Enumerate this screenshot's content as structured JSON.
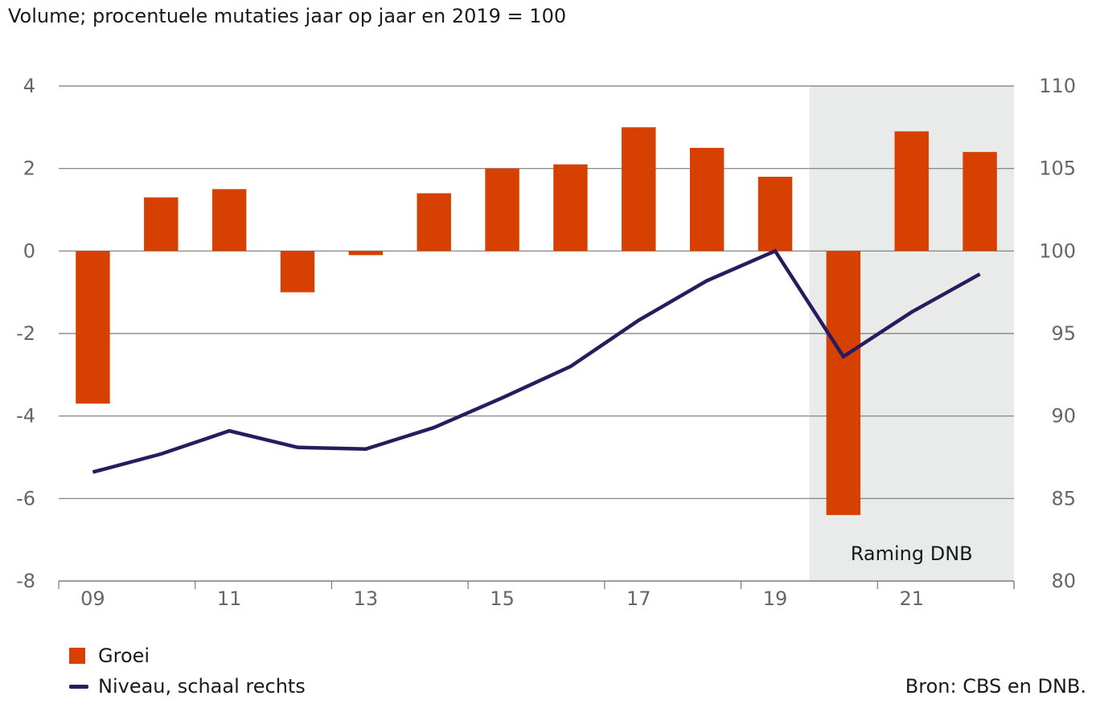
{
  "subtitle": "Volume; procentuele mutaties jaar op jaar en 2019 = 100",
  "source": "Bron: CBS en DNB.",
  "colors": {
    "bars": "#d64000",
    "line": "#2a1a5e",
    "shade": "#e9eaea",
    "grid": "#7a7a7a",
    "tick_text": "#666666"
  },
  "chart_data": {
    "type": "bar",
    "title": "",
    "years": [
      2009,
      2010,
      2011,
      2012,
      2013,
      2014,
      2015,
      2016,
      2017,
      2018,
      2019,
      2020,
      2021,
      2022
    ],
    "x_tick_labels": [
      "09",
      "11",
      "13",
      "15",
      "17",
      "19",
      "21"
    ],
    "x_tick_years": [
      2009,
      2011,
      2013,
      2015,
      2017,
      2019,
      2021
    ],
    "series": [
      {
        "name": "Groei",
        "type": "bar",
        "axis": "left",
        "values": [
          -3.7,
          1.3,
          1.5,
          -1.0,
          -0.1,
          1.4,
          2.0,
          2.1,
          3.0,
          2.5,
          1.8,
          -6.4,
          2.9,
          2.4
        ]
      },
      {
        "name": "Niveau, schaal rechts",
        "type": "line",
        "axis": "right",
        "values": [
          86.6,
          87.7,
          89.1,
          88.1,
          88.0,
          89.3,
          91.1,
          93.0,
          95.8,
          98.2,
          100.0,
          93.6,
          96.3,
          98.6
        ]
      }
    ],
    "y_left": {
      "min": -8,
      "max": 4,
      "ticks": [
        "4",
        "2",
        "0",
        "-2",
        "-4",
        "-6",
        "-8"
      ],
      "tick_values": [
        4,
        2,
        0,
        -2,
        -4,
        -6,
        -8
      ]
    },
    "y_right": {
      "min": 80,
      "max": 110,
      "ticks": [
        "110",
        "105",
        "100",
        "95",
        "90",
        "85",
        "80"
      ],
      "tick_values": [
        110,
        105,
        100,
        95,
        90,
        85,
        80
      ]
    },
    "shaded_region": {
      "from_year": 2020,
      "to_year": 2022,
      "label": "Raming DNB"
    },
    "grid": true,
    "legend_position": "bottom-left"
  }
}
